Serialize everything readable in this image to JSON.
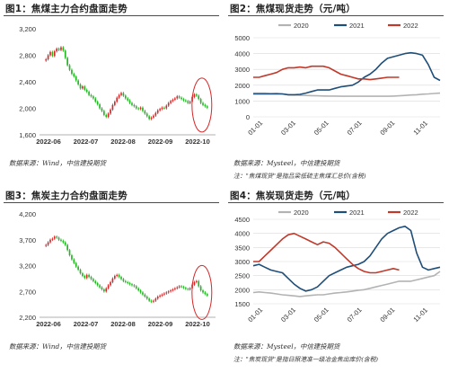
{
  "panel1": {
    "title": "图1：焦煤主力合约盘面走势",
    "source": "数据来源：Wind，中信建投期货",
    "chart_data": {
      "type": "candlestick",
      "title": "图1：焦煤主力合约盘面走势",
      "x_tick_labels": [
        "2022-06",
        "2022-07",
        "2022-08",
        "2022-09",
        "2022-10"
      ],
      "y_ticks": [
        1600,
        2000,
        2400,
        2800,
        3200
      ],
      "y_tick_labels": [
        "1,600",
        "2,000",
        "2,400",
        "2,800",
        "3,200"
      ],
      "ylim": [
        1600,
        3200
      ],
      "closes": [
        2740,
        2800,
        2850,
        2790,
        2860,
        2900,
        2880,
        2920,
        2870,
        2760,
        2650,
        2580,
        2520,
        2480,
        2420,
        2360,
        2300,
        2330,
        2280,
        2250,
        2200,
        2180,
        2150,
        2100,
        2060,
        2000,
        1960,
        1900,
        1870,
        1920,
        1980,
        2050,
        2100,
        2160,
        2200,
        2230,
        2190,
        2150,
        2120,
        2080,
        2050,
        2030,
        2000,
        1990,
        2010,
        1960,
        1920,
        1880,
        1840,
        1860,
        1890,
        1930,
        1970,
        1990,
        2010,
        2000,
        2040,
        2080,
        2110,
        2130,
        2150,
        2180,
        2160,
        2140,
        2120,
        2110,
        2080,
        2100,
        2170,
        2210,
        2190,
        2140,
        2080,
        2050,
        2030,
        2010
      ],
      "up_color": "#d62728",
      "down_color": "#22b522",
      "annotation": "red ellipse around latest bars"
    }
  },
  "panel2": {
    "title": "图2：焦煤现货走势（元/吨）",
    "source": "数据来源：Mysteel，中信建投期货",
    "note": "注：\"焦煤现货\"是指吕梁低硫主焦煤汇总价(含税)",
    "chart_data": {
      "type": "line",
      "title": "图2：焦煤现货走势（元/吨）",
      "x_tick_labels": [
        "01-01",
        "03-01",
        "05-01",
        "07-01",
        "09-01",
        "11-01"
      ],
      "y_ticks": [
        0,
        1000,
        2000,
        3000,
        4000,
        5000
      ],
      "ylim": [
        0,
        5000
      ],
      "series": [
        {
          "name": "2020",
          "color": "#b3b3b3",
          "values": [
            1500,
            1500,
            1500,
            1480,
            1470,
            1450,
            1400,
            1380,
            1360,
            1350,
            1340,
            1330,
            1320,
            1310,
            1310,
            1300,
            1300,
            1300,
            1300,
            1300,
            1300,
            1300,
            1300,
            1300,
            1310,
            1330,
            1350,
            1380,
            1400,
            1430,
            1450,
            1480,
            1500
          ]
        },
        {
          "name": "2021",
          "color": "#1f4e79",
          "values": [
            1450,
            1450,
            1450,
            1450,
            1460,
            1450,
            1400,
            1400,
            1420,
            1500,
            1600,
            1700,
            1700,
            1700,
            1800,
            1900,
            1950,
            2000,
            2200,
            2500,
            2700,
            3000,
            3400,
            3700,
            3800,
            3900,
            4000,
            4050,
            4000,
            3900,
            3300,
            2500,
            2300
          ]
        },
        {
          "name": "2022",
          "color": "#c0392b",
          "values": [
            2500,
            2500,
            2600,
            2700,
            2800,
            3000,
            3100,
            3100,
            3150,
            3100,
            3200,
            3200,
            3200,
            3100,
            2900,
            2700,
            2600,
            2500,
            2400,
            2400,
            2350,
            2400,
            2450,
            2500,
            2500,
            2500
          ]
        }
      ]
    }
  },
  "panel3": {
    "title": "图3：焦炭主力合约盘面走势",
    "source": "数据来源：Wind，中信建投期货",
    "chart_data": {
      "type": "candlestick",
      "title": "图3：焦炭主力合约盘面走势",
      "x_tick_labels": [
        "2022-06",
        "2022-07",
        "2022-08",
        "2022-09",
        "2022-10"
      ],
      "y_ticks": [
        2200,
        2700,
        3200,
        3700,
        4200
      ],
      "y_tick_labels": [
        "2,200",
        "2,700",
        "3,200",
        "3,700",
        "4,200"
      ],
      "ylim": [
        2200,
        4200
      ],
      "closes": [
        3600,
        3650,
        3700,
        3720,
        3760,
        3740,
        3700,
        3680,
        3650,
        3600,
        3500,
        3400,
        3320,
        3250,
        3180,
        3120,
        3050,
        3000,
        2960,
        3020,
        2980,
        2940,
        2900,
        2860,
        2820,
        2780,
        2740,
        2700,
        2760,
        2820,
        2880,
        2950,
        3000,
        3020,
        2980,
        2940,
        2900,
        2880,
        2860,
        2840,
        2820,
        2800,
        2760,
        2720,
        2680,
        2640,
        2600,
        2560,
        2520,
        2500,
        2520,
        2560,
        2600,
        2620,
        2640,
        2660,
        2680,
        2700,
        2720,
        2740,
        2760,
        2780,
        2800,
        2790,
        2770,
        2750,
        2740,
        2760,
        2830,
        2880,
        2900,
        2800,
        2720,
        2680,
        2650,
        2620
      ],
      "up_color": "#d62728",
      "down_color": "#22b522",
      "annotation": "red ellipse around latest bars"
    }
  },
  "panel4": {
    "title": "图4：焦炭现货走势（元/吨）",
    "source": "数据来源：Mysteel，中信建投期货",
    "note": "注：\"焦炭现货\"是指日照港准一级冶金焦出库价(含税)",
    "chart_data": {
      "type": "line",
      "title": "图4：焦炭现货走势（元/吨）",
      "x_tick_labels": [
        "01-01",
        "03-01",
        "05-01",
        "07-01",
        "09-01",
        "11-01"
      ],
      "y_ticks": [
        1500,
        2000,
        2500,
        3000,
        3500,
        4000,
        4500
      ],
      "ylim": [
        1500,
        4500
      ],
      "series": [
        {
          "name": "2020",
          "color": "#b3b3b3",
          "values": [
            1900,
            1920,
            1900,
            1880,
            1850,
            1820,
            1800,
            1780,
            1760,
            1780,
            1800,
            1820,
            1820,
            1850,
            1880,
            1900,
            1920,
            1950,
            1980,
            2000,
            2050,
            2100,
            2150,
            2200,
            2250,
            2300,
            2300,
            2300,
            2350,
            2400,
            2450,
            2500,
            2650
          ]
        },
        {
          "name": "2021",
          "color": "#1f4e79",
          "values": [
            2850,
            2900,
            2800,
            2700,
            2650,
            2600,
            2400,
            2200,
            2050,
            1950,
            2000,
            2100,
            2300,
            2500,
            2600,
            2700,
            2800,
            2850,
            2900,
            3000,
            3200,
            3500,
            3800,
            4000,
            4100,
            4200,
            4250,
            4100,
            3300,
            2800,
            2700,
            2750,
            2800
          ]
        },
        {
          "name": "2022",
          "color": "#c0392b",
          "values": [
            3000,
            3000,
            3200,
            3400,
            3600,
            3800,
            3950,
            4000,
            3900,
            3800,
            3700,
            3600,
            3700,
            3650,
            3500,
            3300,
            3100,
            2900,
            2750,
            2650,
            2600,
            2600,
            2650,
            2700,
            2750,
            2700
          ]
        }
      ]
    }
  }
}
